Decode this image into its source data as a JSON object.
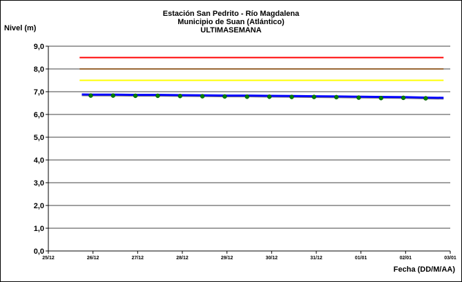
{
  "chart_data": {
    "type": "line",
    "title_lines": [
      "Estación San Pedrito - Río Magdalena",
      "Municipio de Suan (Atlántico)",
      "ULTIMASEMANA"
    ],
    "ylabel": "Nivel (m)",
    "xlabel": "Fecha (DD/M/AA)",
    "ylim": [
      0,
      9
    ],
    "yticks": [
      "0,0",
      "1,0",
      "2,0",
      "3,0",
      "4,0",
      "5,0",
      "6,0",
      "7,0",
      "8,0",
      "9,0"
    ],
    "xticks": [
      "25/12",
      "26/12",
      "27/12",
      "28/12",
      "29/12",
      "30/12",
      "31/12",
      "01/01",
      "02/01",
      "03/01"
    ],
    "xlim": [
      0,
      9
    ],
    "grid": "horizontal",
    "threshold_lines": [
      {
        "value": 8.5,
        "color": "#ff0000"
      },
      {
        "value": 8.0,
        "color": "#996633"
      },
      {
        "value": 7.5,
        "color": "#ffff00"
      }
    ],
    "series": [
      {
        "style": "line",
        "color": "#0000ff",
        "x": [
          0.75,
          1.0,
          1.5,
          2.0,
          2.5,
          3.0,
          3.5,
          4.0,
          4.5,
          5.0,
          5.5,
          6.0,
          6.5,
          7.0,
          7.5,
          8.0,
          8.5,
          8.85
        ],
        "values": [
          6.88,
          6.87,
          6.87,
          6.86,
          6.86,
          6.85,
          6.84,
          6.83,
          6.83,
          6.82,
          6.81,
          6.8,
          6.79,
          6.78,
          6.77,
          6.76,
          6.74,
          6.73
        ]
      },
      {
        "style": "markers",
        "color": "#008000",
        "x": [
          0.95,
          1.45,
          1.95,
          2.45,
          2.95,
          3.45,
          3.95,
          4.45,
          4.95,
          5.45,
          5.95,
          6.45,
          6.95,
          7.45,
          7.95,
          8.45
        ],
        "values": [
          6.83,
          6.83,
          6.82,
          6.82,
          6.81,
          6.8,
          6.79,
          6.78,
          6.78,
          6.77,
          6.77,
          6.76,
          6.74,
          6.72,
          6.73,
          6.71
        ]
      }
    ]
  }
}
